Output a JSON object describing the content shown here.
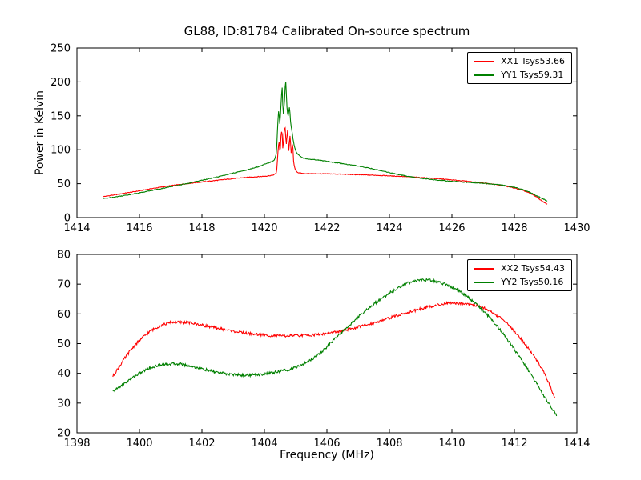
{
  "figure": {
    "background": "#ffffff",
    "frame_color": "#000000",
    "text_color": "#000000",
    "red_color": "#ff0000",
    "green_color": "#008000"
  },
  "chart_data": [
    {
      "type": "line",
      "title": "GL88, ID:81784 Calibrated On-source spectrum",
      "xlabel": "",
      "ylabel": "Power in Kelvin",
      "xlim": [
        1414,
        1430
      ],
      "ylim": [
        0,
        250
      ],
      "xticks": [
        1414,
        1416,
        1418,
        1420,
        1422,
        1424,
        1426,
        1428,
        1430
      ],
      "yticks": [
        0,
        50,
        100,
        150,
        200,
        250
      ],
      "grid": false,
      "legend_position": "upper right",
      "series": [
        {
          "name": "XX1 Tsys53.66",
          "color": "#ff0000",
          "noise": 0.5,
          "points": [
            [
              1414.85,
              31
            ],
            [
              1415.2,
              33.5
            ],
            [
              1415.6,
              36.5
            ],
            [
              1416,
              39.5
            ],
            [
              1416.5,
              43.5
            ],
            [
              1417,
              47
            ],
            [
              1417.5,
              50
            ],
            [
              1418,
              52.5
            ],
            [
              1418.5,
              55
            ],
            [
              1419,
              57.5
            ],
            [
              1419.5,
              59.5
            ],
            [
              1420,
              61
            ],
            [
              1420.25,
              62.5
            ],
            [
              1420.38,
              66
            ],
            [
              1420.44,
              100
            ],
            [
              1420.47,
              112
            ],
            [
              1420.5,
              96
            ],
            [
              1420.53,
              120
            ],
            [
              1420.56,
              128
            ],
            [
              1420.59,
              102
            ],
            [
              1420.63,
              126
            ],
            [
              1420.66,
              133
            ],
            [
              1420.7,
              108
            ],
            [
              1420.74,
              129
            ],
            [
              1420.78,
              98
            ],
            [
              1420.82,
              121
            ],
            [
              1420.86,
              95
            ],
            [
              1420.9,
              108
            ],
            [
              1420.94,
              80
            ],
            [
              1421,
              70
            ],
            [
              1421.1,
              66
            ],
            [
              1421.4,
              64.8
            ],
            [
              1422,
              64.5
            ],
            [
              1422.5,
              64
            ],
            [
              1423,
              63.2
            ],
            [
              1423.5,
              62.5
            ],
            [
              1424,
              61.5
            ],
            [
              1424.5,
              60.5
            ],
            [
              1425,
              59
            ],
            [
              1425.5,
              57.5
            ],
            [
              1426,
              55.5
            ],
            [
              1426.5,
              53.5
            ],
            [
              1427,
              51
            ],
            [
              1427.5,
              48
            ],
            [
              1428,
              43.5
            ],
            [
              1428.3,
              39.5
            ],
            [
              1428.6,
              33.5
            ],
            [
              1428.9,
              24
            ],
            [
              1429.05,
              19.5
            ]
          ]
        },
        {
          "name": "YY1 Tsys59.31",
          "color": "#008000",
          "noise": 0.5,
          "points": [
            [
              1414.85,
              28
            ],
            [
              1415.3,
              31
            ],
            [
              1416,
              36.5
            ],
            [
              1416.5,
              41
            ],
            [
              1417,
              45.5
            ],
            [
              1417.5,
              50
            ],
            [
              1418,
              55
            ],
            [
              1418.5,
              60
            ],
            [
              1419,
              65.5
            ],
            [
              1419.5,
              71
            ],
            [
              1419.8,
              75
            ],
            [
              1420,
              78.5
            ],
            [
              1420.15,
              81
            ],
            [
              1420.3,
              84.5
            ],
            [
              1420.38,
              95
            ],
            [
              1420.43,
              140
            ],
            [
              1420.46,
              158
            ],
            [
              1420.49,
              138
            ],
            [
              1420.53,
              165
            ],
            [
              1420.57,
              192
            ],
            [
              1420.6,
              152
            ],
            [
              1420.64,
              170
            ],
            [
              1420.68,
              201
            ],
            [
              1420.72,
              163
            ],
            [
              1420.76,
              150
            ],
            [
              1420.8,
              163
            ],
            [
              1420.84,
              140
            ],
            [
              1420.88,
              128
            ],
            [
              1420.93,
              112
            ],
            [
              1421,
              99
            ],
            [
              1421.1,
              92
            ],
            [
              1421.3,
              87
            ],
            [
              1421.6,
              85.5
            ],
            [
              1422,
              83
            ],
            [
              1422.5,
              79.5
            ],
            [
              1423,
              76
            ],
            [
              1423.5,
              71.5
            ],
            [
              1424,
              66.5
            ],
            [
              1424.4,
              62.5
            ],
            [
              1425,
              58
            ],
            [
              1425.5,
              55.5
            ],
            [
              1426,
              53.5
            ],
            [
              1426.5,
              52
            ],
            [
              1427,
              50.5
            ],
            [
              1427.5,
              48.5
            ],
            [
              1428,
              44.5
            ],
            [
              1428.4,
              39
            ],
            [
              1428.7,
              32.5
            ],
            [
              1429.05,
              24.5
            ]
          ]
        }
      ]
    },
    {
      "type": "line",
      "title": "",
      "xlabel": "Frequency (MHz)",
      "ylabel": "",
      "xlim": [
        1398,
        1414
      ],
      "ylim": [
        20,
        80
      ],
      "xticks": [
        1398,
        1400,
        1402,
        1404,
        1406,
        1408,
        1410,
        1412,
        1414
      ],
      "yticks": [
        20,
        30,
        40,
        50,
        60,
        70,
        80
      ],
      "grid": false,
      "legend_position": "upper right",
      "series": [
        {
          "name": "XX2 Tsys54.43",
          "color": "#ff0000",
          "noise": 0.45,
          "points": [
            [
              1399.15,
              39
            ],
            [
              1399.4,
              43
            ],
            [
              1399.7,
              47.5
            ],
            [
              1400,
              51
            ],
            [
              1400.4,
              54.5
            ],
            [
              1400.8,
              56.5
            ],
            [
              1401.1,
              57.2
            ],
            [
              1401.5,
              57.1
            ],
            [
              1402,
              56.2
            ],
            [
              1402.5,
              55.2
            ],
            [
              1403,
              54.2
            ],
            [
              1403.5,
              53.4
            ],
            [
              1404,
              52.9
            ],
            [
              1404.5,
              52.6
            ],
            [
              1405,
              52.7
            ],
            [
              1405.5,
              52.9
            ],
            [
              1406,
              53.4
            ],
            [
              1406.5,
              54.3
            ],
            [
              1407,
              55.6
            ],
            [
              1407.5,
              57
            ],
            [
              1408,
              58.6
            ],
            [
              1408.5,
              60.2
            ],
            [
              1409,
              61.7
            ],
            [
              1409.5,
              62.9
            ],
            [
              1410,
              63.6
            ],
            [
              1410.4,
              63.5
            ],
            [
              1410.8,
              62.8
            ],
            [
              1411.2,
              61
            ],
            [
              1411.6,
              58.2
            ],
            [
              1412,
              54.2
            ],
            [
              1412.4,
              49
            ],
            [
              1412.8,
              43
            ],
            [
              1413.1,
              36.8
            ],
            [
              1413.3,
              31.5
            ]
          ]
        },
        {
          "name": "YY2 Tsys50.16",
          "color": "#008000",
          "noise": 0.45,
          "points": [
            [
              1399.15,
              33.8
            ],
            [
              1399.5,
              36.5
            ],
            [
              1400,
              40
            ],
            [
              1400.4,
              42
            ],
            [
              1400.8,
              43.1
            ],
            [
              1401.2,
              43.2
            ],
            [
              1401.6,
              42.5
            ],
            [
              1402,
              41.5
            ],
            [
              1402.5,
              40.3
            ],
            [
              1403,
              39.6
            ],
            [
              1403.4,
              39.4
            ],
            [
              1403.8,
              39.6
            ],
            [
              1404.2,
              40.1
            ],
            [
              1404.6,
              40.9
            ],
            [
              1405,
              42
            ],
            [
              1405.4,
              44
            ],
            [
              1405.8,
              47
            ],
            [
              1406.2,
              51
            ],
            [
              1406.6,
              55
            ],
            [
              1407,
              59
            ],
            [
              1407.4,
              62.5
            ],
            [
              1407.8,
              65.5
            ],
            [
              1408.2,
              68.3
            ],
            [
              1408.6,
              70.4
            ],
            [
              1409,
              71.4
            ],
            [
              1409.3,
              71.3
            ],
            [
              1409.6,
              70.6
            ],
            [
              1410,
              69
            ],
            [
              1410.4,
              66.5
            ],
            [
              1410.7,
              64
            ],
            [
              1411,
              61
            ],
            [
              1411.4,
              56.5
            ],
            [
              1411.8,
              51
            ],
            [
              1412.2,
              45
            ],
            [
              1412.6,
              38.5
            ],
            [
              1413,
              31.5
            ],
            [
              1413.35,
              25.8
            ]
          ]
        }
      ]
    }
  ]
}
